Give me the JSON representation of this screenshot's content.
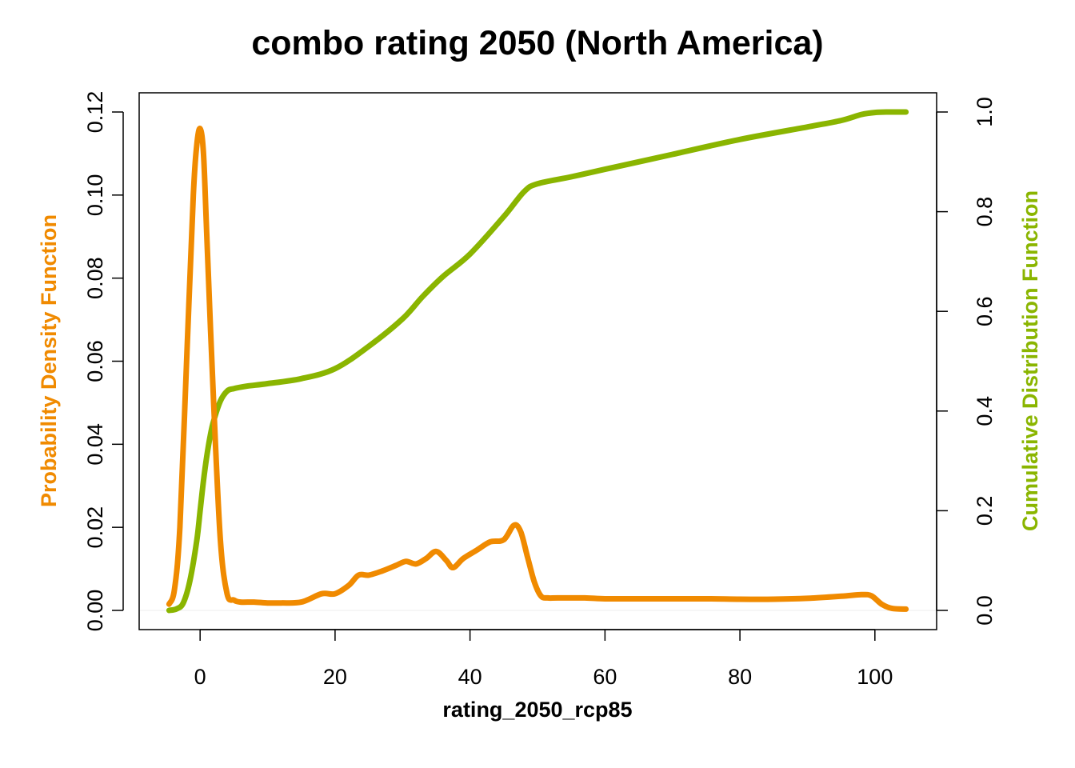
{
  "chart_data": {
    "type": "line",
    "title": "combo rating 2050 (North America)",
    "xlabel": "rating_2050_rcp85",
    "ylabel_left": "Probability Density Function",
    "ylabel_right": "Cumulative Distribution Function",
    "xlim": [
      -5,
      105
    ],
    "ylim_left": [
      0,
      0.12
    ],
    "ylim_right": [
      0,
      1.0
    ],
    "x_ticks": [
      0,
      20,
      40,
      60,
      80,
      100
    ],
    "x_tick_labels": [
      "0",
      "20",
      "40",
      "60",
      "80",
      "100"
    ],
    "y_left_ticks": [
      0,
      0.02,
      0.04,
      0.06,
      0.08,
      0.1,
      0.12
    ],
    "y_left_tick_labels": [
      "0.00",
      "0.02",
      "0.04",
      "0.06",
      "0.08",
      "0.10",
      "0.12"
    ],
    "y_right_ticks": [
      0,
      0.2,
      0.4,
      0.6,
      0.8,
      1.0
    ],
    "y_right_tick_labels": [
      "0.0",
      "0.2",
      "0.4",
      "0.6",
      "0.8",
      "1.0"
    ],
    "colors": {
      "pdf": "#F08A00",
      "cdf": "#8AB500",
      "axis": "#000000"
    },
    "series": [
      {
        "axis": "left",
        "color": "#F08A00",
        "x": [
          -4.6,
          -3.8,
          -3,
          -2,
          -1,
          -0.5,
          0,
          0.5,
          1,
          2,
          3,
          4,
          5,
          6,
          8,
          10,
          12,
          15,
          18,
          20,
          22,
          23.5,
          25,
          27,
          29,
          30.5,
          32,
          33.5,
          35,
          36.5,
          37.5,
          39,
          41,
          43,
          45,
          46.5,
          47.5,
          48.5,
          49.5,
          50.5,
          51.5,
          53,
          57,
          60,
          65,
          70,
          75,
          80,
          85,
          90,
          95,
          98,
          99.5,
          101,
          102.5,
          104.6
        ],
        "y": [
          0.0015,
          0.005,
          0.02,
          0.06,
          0.1,
          0.112,
          0.116,
          0.11,
          0.09,
          0.05,
          0.017,
          0.004,
          0.0025,
          0.002,
          0.002,
          0.0018,
          0.0018,
          0.002,
          0.004,
          0.004,
          0.006,
          0.0085,
          0.0085,
          0.0095,
          0.0108,
          0.0118,
          0.0112,
          0.0125,
          0.0142,
          0.012,
          0.0103,
          0.0125,
          0.0145,
          0.0165,
          0.017,
          0.0205,
          0.019,
          0.013,
          0.007,
          0.0035,
          0.003,
          0.003,
          0.003,
          0.0028,
          0.0028,
          0.0028,
          0.0028,
          0.0027,
          0.0027,
          0.0029,
          0.0034,
          0.0038,
          0.0035,
          0.0015,
          0.0005,
          0.0003
        ]
      },
      {
        "axis": "right",
        "color": "#8AB500",
        "x": [
          -4.6,
          -3.5,
          -2.5,
          -1.5,
          -0.5,
          0,
          0.5,
          1,
          1.5,
          2,
          3,
          4,
          5,
          7,
          10,
          15,
          20,
          25,
          30,
          33,
          36,
          40,
          45,
          48,
          50,
          55,
          60,
          70,
          80,
          90,
          95,
          98,
          100,
          102,
          104.6
        ],
        "y": [
          0.0,
          0.003,
          0.015,
          0.06,
          0.14,
          0.2,
          0.26,
          0.31,
          0.35,
          0.38,
          0.42,
          0.44,
          0.445,
          0.45,
          0.455,
          0.465,
          0.485,
          0.53,
          0.585,
          0.63,
          0.67,
          0.715,
          0.79,
          0.84,
          0.856,
          0.87,
          0.885,
          0.915,
          0.945,
          0.97,
          0.983,
          0.995,
          0.999,
          1.0,
          1.0
        ]
      }
    ]
  }
}
